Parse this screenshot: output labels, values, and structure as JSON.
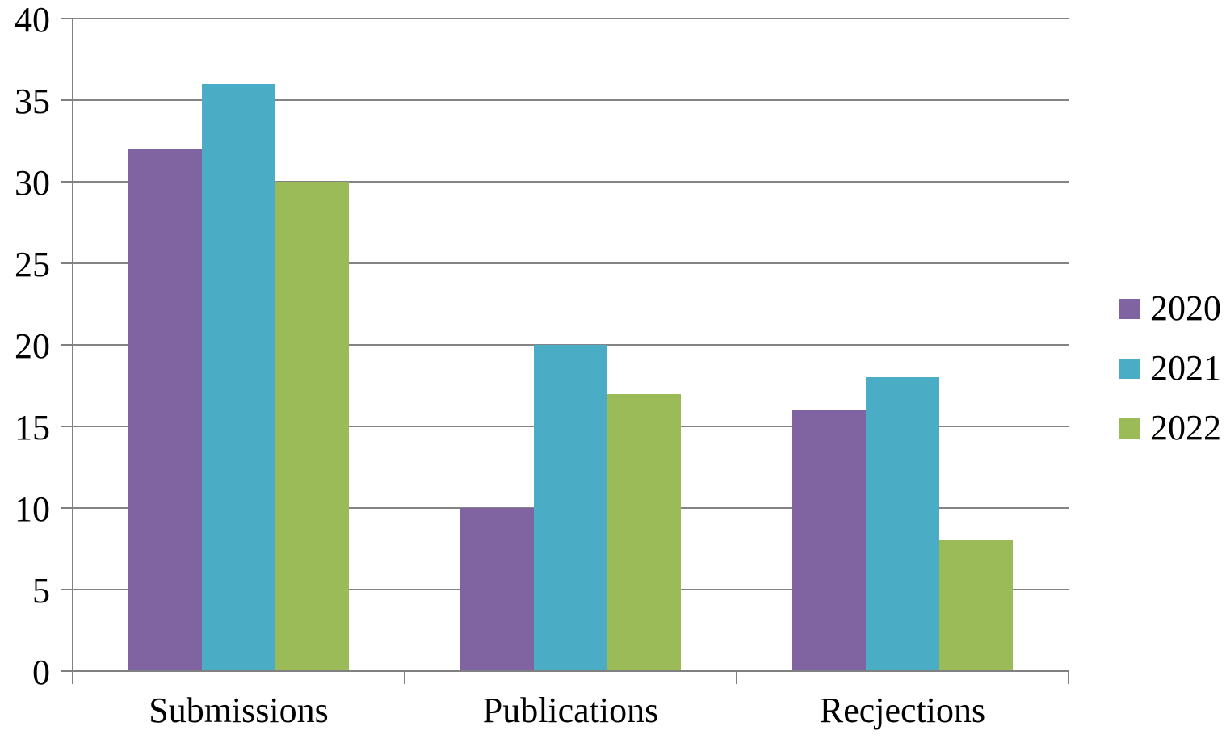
{
  "chart_data": {
    "type": "bar",
    "title": "",
    "categories": [
      "Submissions",
      "Publications",
      "Recjections"
    ],
    "series": [
      {
        "name": "2020",
        "color": "#8064A2",
        "values": [
          32,
          10,
          16
        ]
      },
      {
        "name": "2021",
        "color": "#4BACC6",
        "values": [
          36,
          20,
          18
        ]
      },
      {
        "name": "2022",
        "color": "#9BBB59",
        "values": [
          30,
          17,
          8
        ]
      }
    ],
    "ylim": [
      0,
      40
    ],
    "ytick_step": 5,
    "ytick_labels": [
      "0",
      "5",
      "10",
      "15",
      "20",
      "25",
      "30",
      "35",
      "40"
    ],
    "grid": true,
    "legend_position": "right",
    "legend_entries": [
      "2020",
      "2021",
      "2022"
    ]
  },
  "colors": {
    "axis": "#808080",
    "gridline": "#848484",
    "background": "#FFFFFF",
    "text": "#000000"
  }
}
